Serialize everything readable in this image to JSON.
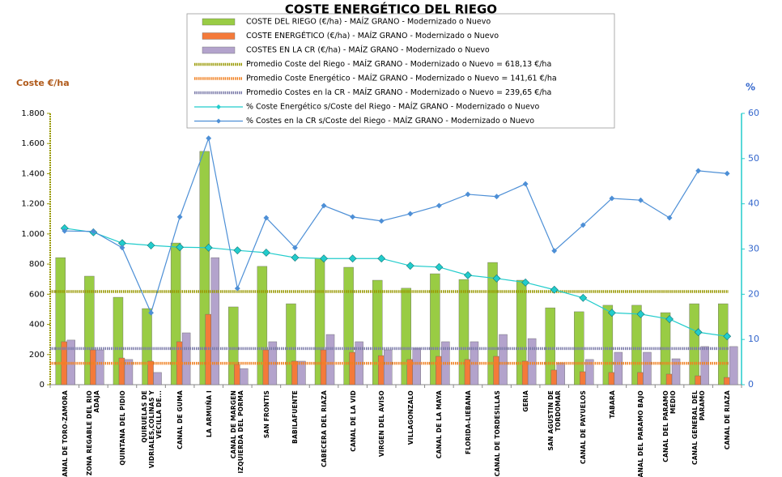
{
  "chart_data": {
    "type": "combo",
    "title": "COSTE ENERGÉTICO DEL RIEGO",
    "y_label": "Coste €/ha",
    "y2_label": "%",
    "categories": [
      "CANAL DE TORO-ZAMORA",
      "ZONA REGABLE DEL RIO ADAJA",
      "QUINTANA DEL PIDIO",
      "QUIRUELAS DE VIDRIALES,COLINAS Y VECILLA DE...",
      "CANAL DE GUMA",
      "LA ARMUÑA I",
      "CANAL DE MARGEN IZQUIERDA DEL PORMA",
      "SAN FRONTIS",
      "BABILAFUENTE",
      "CABECERA DEL RIAZA",
      "CANAL DE LA VID",
      "VIRGEN DEL AVISO",
      "VILLAGONZALO",
      "CANAL DE LA MAYA",
      "FLORIDA-LIEBANA",
      "CANAL DE TORDESILLAS",
      "GERIA",
      "SAN AGUSTIN DE TORDOMAR",
      "CANAL DE PAYUELOS",
      "TABARA",
      "CANAL DEL PARAMO BAJO",
      "CANAL DEL PARAMO MEDIO",
      "CANAL GENERAL DEL PARAMO",
      "CANAL DE RIAZA"
    ],
    "series": [
      {
        "name": "COSTE DEL RIEGO (€/ha) - MAÍZ GRANO - Modernizado o Nuevo",
        "kind": "bar",
        "color": "#99cc44",
        "values": [
          843,
          720,
          580,
          505,
          940,
          1548,
          516,
          785,
          537,
          838,
          779,
          693,
          640,
          736,
          698,
          811,
          693,
          510,
          484,
          527,
          527,
          478,
          537,
          537
        ]
      },
      {
        "name": "COSTE ENERGÉTICO (€/ha) - MAÍZ GRANO - Modernizado o Nuevo",
        "kind": "bar",
        "color": "#f47a3a",
        "values": [
          285,
          231,
          177,
          156,
          285,
          467,
          134,
          231,
          156,
          231,
          215,
          193,
          167,
          188,
          167,
          188,
          156,
          97,
          86,
          81,
          81,
          70,
          59,
          48
        ]
      },
      {
        "name": "COSTES EN LA CR (€/ha) - MAÍZ GRANO - Modernizado o Nuevo",
        "kind": "bar",
        "color": "#b3a3cc",
        "values": [
          296,
          231,
          167,
          81,
          344,
          843,
          107,
          285,
          156,
          333,
          285,
          231,
          242,
          285,
          285,
          333,
          306,
          145,
          167,
          215,
          215,
          172,
          253,
          253
        ]
      },
      {
        "name": "% Coste Energético s/Coste del Riego - MAÍZ GRANO - Modernizado o Nuevo",
        "kind": "line",
        "axis": "y2",
        "color": "#22cccc",
        "values": [
          34.6,
          33.7,
          31.3,
          30.8,
          30.4,
          30.3,
          29.7,
          29.2,
          28.1,
          27.9,
          27.9,
          27.9,
          26.3,
          26.0,
          24.2,
          23.5,
          22.6,
          21.0,
          19.2,
          15.9,
          15.6,
          14.5,
          11.6,
          10.7
        ]
      },
      {
        "name": "% Costes en la CR s/Coste del Riego - MAÍZ GRANO - Modernizado o Nuevo",
        "kind": "line",
        "axis": "y2",
        "color": "#4d8fd6",
        "values": [
          34.0,
          33.9,
          30.3,
          15.9,
          37.1,
          54.5,
          21.3,
          36.9,
          30.3,
          39.6,
          37.1,
          36.2,
          37.8,
          39.6,
          42.1,
          41.6,
          44.4,
          29.6,
          35.3,
          41.2,
          40.8,
          36.9,
          47.3,
          46.7
        ]
      }
    ],
    "averages": [
      {
        "name": "Promedio Coste del Riego - MAÍZ GRANO - Modernizado o Nuevo = 618,13 €/ha",
        "value": 618.13,
        "color": "#999900"
      },
      {
        "name": "Promedio Coste Energético - MAÍZ GRANO - Modernizado o Nuevo = 141,61 €/ha",
        "value": 141.61,
        "color": "#f08020"
      },
      {
        "name": "Promedio Costes en la CR - MAÍZ GRANO - Modernizado o Nuevo = 239,65 €/ha",
        "value": 239.65,
        "color": "#7a7aa8"
      }
    ],
    "ylim": [
      0,
      1800
    ],
    "yticks": [
      0,
      200,
      400,
      600,
      800,
      {
        "value": 1000,
        "label": "1.000"
      },
      {
        "value": 1200,
        "label": "1.200"
      },
      {
        "value": 1400,
        "label": "1.400"
      },
      {
        "value": 1600,
        "label": "1.600"
      },
      {
        "value": 1800,
        "label": "1.800"
      }
    ],
    "y2lim": [
      0,
      60
    ],
    "y2ticks": [
      0,
      10,
      20,
      30,
      40,
      50,
      60
    ],
    "legend": "top"
  }
}
